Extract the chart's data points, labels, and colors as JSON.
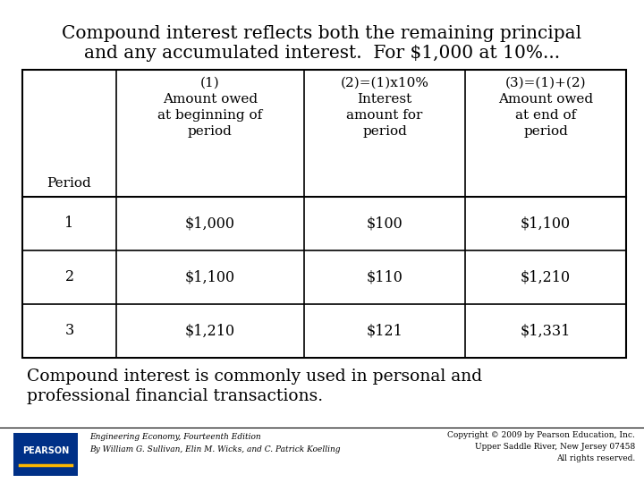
{
  "title_line1": "Compound interest reflects both the remaining principal",
  "title_line2": "and any accumulated interest.  For $1,000 at 10%...",
  "footer_line1": "Compound interest is commonly used in personal and",
  "footer_line2": "professional financial transactions.",
  "col0_header": [
    "Period"
  ],
  "col1_header": [
    "(1)",
    "Amount owed",
    "at beginning of",
    "period"
  ],
  "col2_header": [
    "(2)=(1)x10%",
    "Interest",
    "amount for",
    "period"
  ],
  "col3_header": [
    "(3)=(1)+(2)",
    "Amount owed",
    "at end of",
    "period"
  ],
  "rows": [
    [
      "1",
      "$1,000",
      "$100",
      "$1,100"
    ],
    [
      "2",
      "$1,100",
      "$110",
      "$1,210"
    ],
    [
      "3",
      "$1,210",
      "$121",
      "$1,331"
    ]
  ],
  "pearson_text1": "Engineering Economy, Fourteenth Edition",
  "pearson_text2": "By William G. Sullivan, Elin M. Wicks, and C. Patrick Koelling",
  "copyright_text1": "Copyright © 2009 by Pearson Education, Inc.",
  "copyright_text2": "Upper Saddle River, New Jersey 07458",
  "copyright_text3": "All rights reserved.",
  "bg_color": "#ffffff",
  "text_color": "#000000",
  "border_color": "#000000",
  "pearson_box_color": "#003087",
  "title_fontsize": 14.5,
  "footer_fontsize": 13.5,
  "header_fontsize": 11.0,
  "data_fontsize": 11.5,
  "small_fontsize": 6.5
}
